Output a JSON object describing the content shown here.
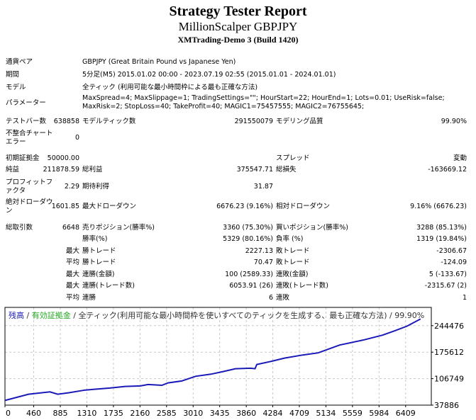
{
  "header": {
    "title": "Strategy Tester Report",
    "subtitle": "MillionScalper GBPJPY",
    "server": "XMTrading-Demo 3 (Build 1420)"
  },
  "info": [
    {
      "label": "通貨ペア",
      "value": "GBPJPY (Great Britain Pound vs Japanese Yen)"
    },
    {
      "label": "期間",
      "value": "5分足(M5) 2015.01.02 00:00 - 2023.07.19 02:55 (2015.01.01 - 2024.01.01)"
    },
    {
      "label": "モデル",
      "value": "全ティック (利用可能な最小時間枠による最も正確な方法)"
    },
    {
      "label": "パラメーター",
      "value": "MaxSpread=4; MaxSlippage=1; TradingSettings=\"\"; HourStart=22; HourEnd=1; Lots=0.01; UseRisk=false; MaxRisk=2; StopLoss=40; TakeProfit=40; MAGIC1=75457555; MAGIC2=76755645;"
    }
  ],
  "bars": {
    "label": "テストバー数",
    "value": "638858",
    "ticks_label": "モデルティック数",
    "ticks_value": "291550079",
    "quality_label": "モデリング品質",
    "quality_value": "99.90%"
  },
  "mismatch": {
    "label": "不整合チャートエラー",
    "value": "0"
  },
  "stats": [
    [
      "初期証拠金",
      "50000.00",
      "",
      "",
      "スプレッド",
      "変動"
    ],
    [
      "純益",
      "211878.59",
      "総利益",
      "375547.71",
      "総損失",
      "-163669.12"
    ],
    [
      "プロフィットファクタ",
      "2.29",
      "期待利得",
      "31.87",
      "",
      ""
    ],
    [
      "絶対ドローダウン",
      "1601.85",
      "最大ドローダウン",
      "6676.23 (9.16%)",
      "相対ドローダウン",
      "9.16% (6676.23)"
    ],
    [
      "総取引数",
      "6648",
      "売りポジション(勝率%)",
      "3360 (75.30%)",
      "買いポジション(勝率%)",
      "3288 (85.13%)"
    ],
    [
      "",
      "",
      "勝率(%)",
      "5329 (80.16%)",
      "負率 (%)",
      "1319 (19.84%)"
    ],
    [
      "",
      "最大",
      "勝トレード",
      "2227.13",
      "敗トレード",
      "-2306.67"
    ],
    [
      "",
      "平均",
      "勝トレード",
      "70.47",
      "敗トレード",
      "-124.09"
    ],
    [
      "",
      "最大",
      "連勝(金額)",
      "100 (2589.33)",
      "連敗(金額)",
      "5 (-133.67)"
    ],
    [
      "",
      "最大",
      "連勝(トレード数)",
      "6053.91 (26)",
      "連敗(トレード数)",
      "-2315.67 (2)"
    ],
    [
      "",
      "平均",
      "連勝",
      "6",
      "連敗",
      "1"
    ]
  ],
  "chart_data": {
    "type": "line",
    "legend": {
      "balance": "残高",
      "equity": "有効証拠金",
      "model": "全ティック(利用可能な最小時間枠を使いすべてのティックを生成する、最も正確な方法)",
      "quality": "99.90%",
      "sep": "/"
    },
    "colors": {
      "balance": "#1a1ab8",
      "equity": "#22aa22",
      "grid": "#c8c8c8"
    },
    "x_ticks": [
      "0",
      "460",
      "885",
      "1310",
      "1735",
      "2160",
      "2585",
      "3010",
      "3435",
      "3860",
      "4284",
      "4709",
      "5134",
      "5559",
      "5984",
      "6409"
    ],
    "y_ticks": [
      "37886",
      "106749",
      "175612",
      "244476"
    ],
    "xlim": [
      0,
      6820
    ],
    "ylim": [
      37886,
      292000
    ],
    "grid": true,
    "series": [
      {
        "x": [
          0,
          377,
          720,
          843,
          1015,
          1284,
          1676,
          1921,
          2167,
          2289,
          2510,
          2608,
          2828,
          3049,
          3294,
          3490,
          3686,
          3931,
          4000,
          4029,
          4275,
          4471,
          4765,
          5010,
          5353,
          5745,
          6039,
          6235,
          6431,
          6648
        ],
        "y": [
          50000,
          66170,
          72300,
          66200,
          69900,
          77200,
          82200,
          86500,
          87700,
          91400,
          89500,
          95700,
          100600,
          112900,
          118400,
          125200,
          132600,
          133800,
          132500,
          143600,
          152300,
          160200,
          168200,
          173800,
          194000,
          207600,
          219900,
          231000,
          243200,
          261878
        ]
      }
    ]
  }
}
